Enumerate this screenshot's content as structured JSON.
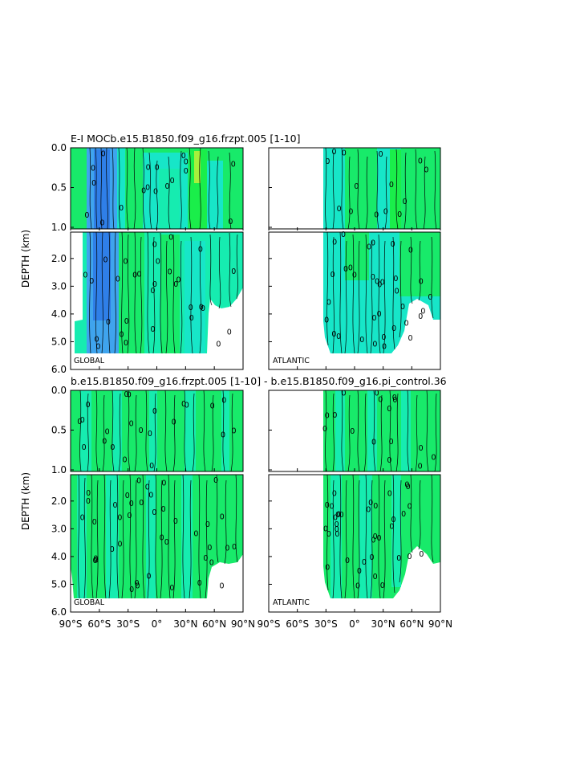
{
  "chart_data": [
    {
      "type": "heatmap",
      "title": "E-I MOCb.e15.B1850.f09_g16.frzpt.005 [1-10]",
      "ylabel": "DEPTH (km)",
      "panels": [
        {
          "label": "GLOBAL",
          "xlim": [
            -90,
            90
          ]
        },
        {
          "label": "ATLANTIC",
          "xlim": [
            -90,
            90
          ]
        }
      ],
      "y_ticks_top": [
        "0.0",
        "0.5",
        "1.0"
      ],
      "y_ticks_bottom": [
        "2.0",
        "3.0",
        "4.0",
        "5.0",
        "6.0"
      ],
      "contour_label": "0"
    },
    {
      "type": "heatmap",
      "title": "b.e15.B1850.f09_g16.frzpt.005 [1-10] - b.e15.B1850.f09_g16.pi_control.36",
      "ylabel": "DEPTH (km)",
      "panels": [
        {
          "label": "GLOBAL",
          "xlim": [
            -90,
            90
          ]
        },
        {
          "label": "ATLANTIC",
          "xlim": [
            -90,
            90
          ]
        }
      ],
      "y_ticks_top": [
        "0.0",
        "0.5",
        "1.0"
      ],
      "y_ticks_bottom": [
        "2.0",
        "3.0",
        "4.0",
        "5.0",
        "6.0"
      ],
      "x_ticks": [
        "90°S",
        "60°S",
        "30°S",
        "0°",
        "30°N",
        "60°N",
        "90°N"
      ],
      "contour_label": "0"
    }
  ],
  "colors": {
    "deep_blue": "#2f7fe8",
    "blue": "#3fa4ee",
    "cyan": "#17e6c8",
    "teal": "#16ecb0",
    "green": "#18ea6a",
    "bright_green": "#1aee4a",
    "yellow_green": "#a8f03c"
  }
}
